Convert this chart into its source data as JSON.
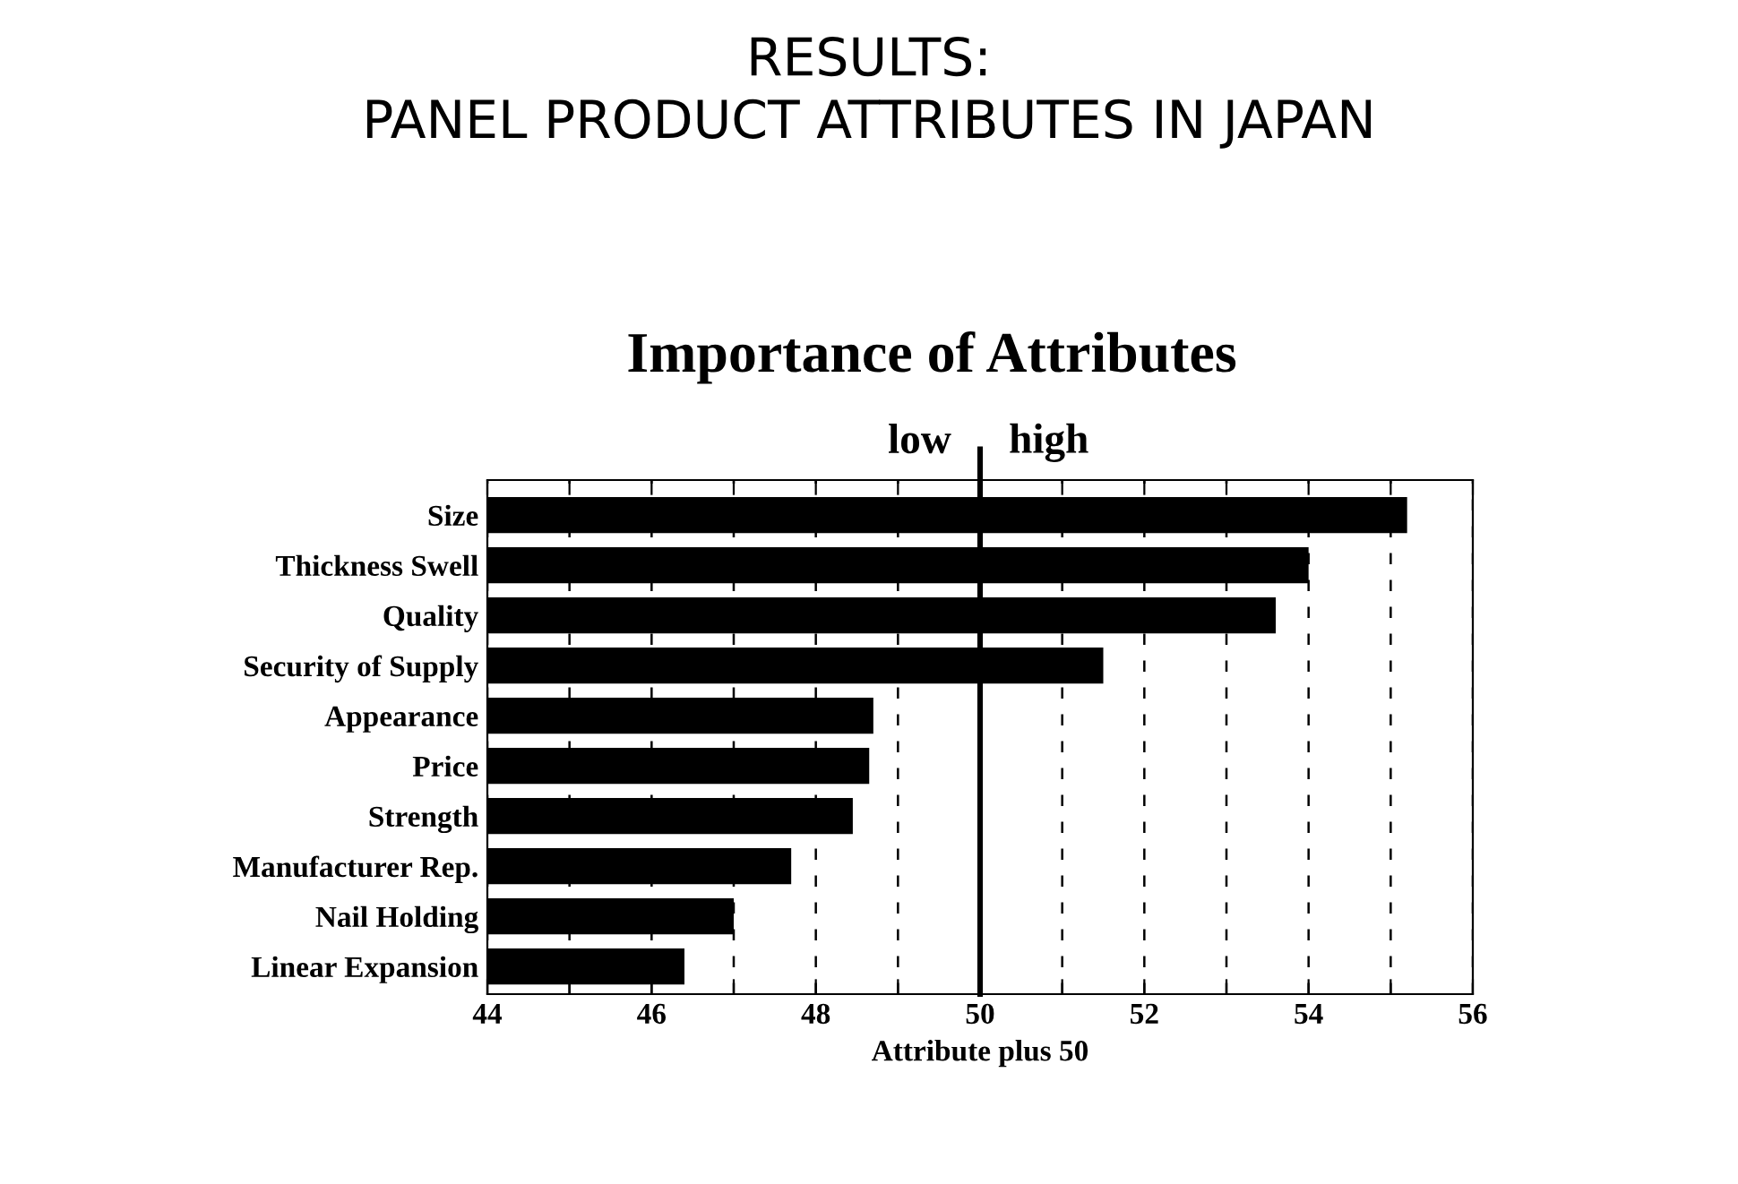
{
  "chart_data": {
    "type": "bar",
    "orientation": "horizontal",
    "title": "RESULTS:\nPANEL PRODUCT ATTRIBUTES IN JAPAN",
    "subtitle": "Importance of Attributes",
    "xlabel": "Attribute plus 50",
    "categories": [
      "Size",
      "Thickness Swell",
      "Quality",
      "Security of Supply",
      "Appearance",
      "Price",
      "Strength",
      "Manufacturer Rep.",
      "Nail Holding",
      "Linear Expansion"
    ],
    "values": [
      55.2,
      54.0,
      53.6,
      51.5,
      48.7,
      48.65,
      48.45,
      47.7,
      47.0,
      46.4
    ],
    "color": "#000000",
    "xlim": [
      44,
      56
    ],
    "xticks": [
      44,
      {
        "value": 45,
        "label": null
      },
      46,
      {
        "value": 47,
        "label": null
      },
      48,
      {
        "value": 49,
        "label": null
      },
      50,
      {
        "value": 51,
        "label": null
      },
      52,
      {
        "value": 53,
        "label": null
      },
      54,
      {
        "value": 55,
        "label": null
      },
      56
    ],
    "grid": "x",
    "ref_lines": [
      {
        "axis": "x",
        "value": 50,
        "color": "#000000",
        "line_style": "solid"
      }
    ],
    "annotations": [
      "low",
      "high"
    ]
  }
}
